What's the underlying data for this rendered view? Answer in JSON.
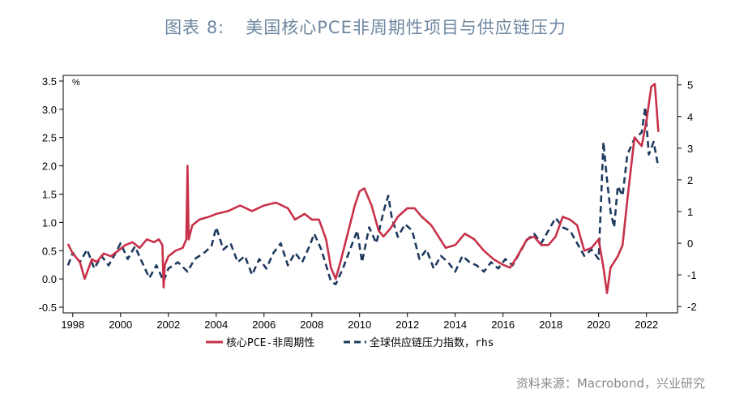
{
  "title": {
    "figure": "图表 8:",
    "text": "美国核心PCE非周期性项目与供应链压力"
  },
  "source": "资料来源：Macrobond，兴业研究",
  "colors": {
    "s1": "#c8314a",
    "s2": "#1f3a5f"
  },
  "chart_data": {
    "type": "line",
    "left_unit": "%",
    "xlim": [
      1997.6,
      2023.3
    ],
    "ylim_left": [
      -0.6,
      3.6
    ],
    "ylim_right": [
      -2.2,
      5.3
    ],
    "x_ticks": [
      1998,
      2000,
      2002,
      2004,
      2006,
      2008,
      2010,
      2012,
      2014,
      2016,
      2018,
      2020,
      2022
    ],
    "x_tick_labels": [
      "1998",
      "2000",
      "2002",
      "2004",
      "2006",
      "2008",
      "2010",
      "2012",
      "2014",
      "2016",
      "2018",
      "2020",
      "2022"
    ],
    "y_left_ticks": [
      -0.5,
      0.0,
      0.5,
      1.0,
      1.5,
      2.0,
      2.5,
      3.0,
      3.5
    ],
    "y_left_tick_labels": [
      "-0.5",
      "0.0",
      "0.5",
      "1.0",
      "1.5",
      "2.0",
      "2.5",
      "3.0",
      "3.5"
    ],
    "y_right_ticks": [
      -2,
      -1,
      0,
      1,
      2,
      3,
      4,
      5
    ],
    "y_right_tick_labels": [
      "-2",
      "-1",
      "0",
      "1",
      "2",
      "3",
      "4",
      "5"
    ],
    "series": [
      {
        "name": "核心PCE-非周期性",
        "axis": "left",
        "style": "solid",
        "x": [
          1997.8,
          1998.0,
          1998.3,
          1998.5,
          1998.8,
          1999.0,
          1999.3,
          1999.6,
          1999.9,
          2000.2,
          2000.5,
          2000.8,
          2001.1,
          2001.4,
          2001.6,
          2001.75,
          2001.8,
          2001.85,
          2002.0,
          2002.3,
          2002.6,
          2002.75,
          2002.8,
          2002.85,
          2003.0,
          2003.3,
          2003.7,
          2004.0,
          2004.5,
          2005.0,
          2005.5,
          2006.0,
          2006.5,
          2007.0,
          2007.3,
          2007.7,
          2008.0,
          2008.3,
          2008.6,
          2008.8,
          2009.0,
          2009.2,
          2009.5,
          2009.8,
          2010.0,
          2010.2,
          2010.5,
          2010.8,
          2011.0,
          2011.3,
          2011.6,
          2012.0,
          2012.3,
          2012.6,
          2013.0,
          2013.3,
          2013.6,
          2014.0,
          2014.4,
          2014.8,
          2015.2,
          2015.6,
          2016.0,
          2016.3,
          2016.6,
          2017.0,
          2017.3,
          2017.6,
          2017.9,
          2018.2,
          2018.5,
          2018.8,
          2019.1,
          2019.4,
          2019.7,
          2020.0,
          2020.2,
          2020.35,
          2020.5,
          2020.8,
          2021.0,
          2021.2,
          2021.5,
          2021.8,
          2022.0,
          2022.2,
          2022.35,
          2022.5
        ],
        "values": [
          0.62,
          0.45,
          0.3,
          0.0,
          0.35,
          0.3,
          0.45,
          0.4,
          0.5,
          0.6,
          0.65,
          0.55,
          0.7,
          0.65,
          0.7,
          0.6,
          -0.15,
          0.25,
          0.4,
          0.5,
          0.55,
          0.7,
          2.0,
          0.7,
          0.95,
          1.05,
          1.1,
          1.15,
          1.2,
          1.3,
          1.2,
          1.3,
          1.35,
          1.25,
          1.05,
          1.15,
          1.05,
          1.05,
          0.7,
          0.2,
          0.0,
          0.3,
          0.8,
          1.3,
          1.55,
          1.6,
          1.3,
          0.85,
          0.75,
          0.9,
          1.1,
          1.25,
          1.25,
          1.1,
          0.95,
          0.75,
          0.55,
          0.6,
          0.8,
          0.7,
          0.5,
          0.35,
          0.25,
          0.2,
          0.4,
          0.7,
          0.75,
          0.6,
          0.6,
          0.75,
          1.1,
          1.05,
          0.95,
          0.5,
          0.55,
          0.7,
          0.2,
          -0.25,
          0.2,
          0.4,
          0.6,
          1.4,
          2.5,
          2.35,
          2.8,
          3.4,
          3.45,
          2.6
        ]
      },
      {
        "name": "全球供应链压力指数，rhs",
        "axis": "right",
        "style": "dashed",
        "x": [
          1997.8,
          1998.0,
          1998.3,
          1998.6,
          1998.9,
          1999.2,
          1999.5,
          1999.8,
          2000.0,
          2000.3,
          2000.6,
          2000.9,
          2001.2,
          2001.5,
          2001.8,
          2002.0,
          2002.4,
          2002.8,
          2003.1,
          2003.5,
          2003.8,
          2004.0,
          2004.3,
          2004.6,
          2004.9,
          2005.2,
          2005.5,
          2005.8,
          2006.1,
          2006.4,
          2006.7,
          2007.0,
          2007.3,
          2007.6,
          2007.9,
          2008.1,
          2008.4,
          2008.6,
          2008.8,
          2009.0,
          2009.3,
          2009.6,
          2009.9,
          2010.1,
          2010.4,
          2010.7,
          2011.0,
          2011.2,
          2011.35,
          2011.6,
          2011.9,
          2012.2,
          2012.5,
          2012.8,
          2013.1,
          2013.4,
          2013.7,
          2014.0,
          2014.3,
          2014.6,
          2014.9,
          2015.2,
          2015.5,
          2015.8,
          2016.1,
          2016.4,
          2016.7,
          2017.0,
          2017.3,
          2017.6,
          2017.9,
          2018.2,
          2018.5,
          2018.8,
          2019.1,
          2019.4,
          2019.7,
          2020.0,
          2020.2,
          2020.35,
          2020.5,
          2020.65,
          2020.8,
          2021.0,
          2021.2,
          2021.5,
          2021.8,
          2021.95,
          2022.1,
          2022.3,
          2022.5
        ],
        "values": [
          -0.7,
          -0.3,
          -0.6,
          -0.2,
          -0.8,
          -0.4,
          -0.7,
          -0.3,
          0.0,
          -0.5,
          -0.1,
          -0.6,
          -1.1,
          -0.7,
          -1.2,
          -0.8,
          -0.6,
          -0.9,
          -0.5,
          -0.3,
          -0.1,
          0.5,
          -0.2,
          0.0,
          -0.6,
          -0.4,
          -1.0,
          -0.5,
          -0.8,
          -0.3,
          0.0,
          -0.7,
          -0.3,
          -0.6,
          -0.1,
          0.3,
          -0.2,
          -0.7,
          -1.2,
          -1.3,
          -0.8,
          -0.2,
          0.4,
          -0.6,
          0.5,
          0.0,
          1.0,
          1.5,
          0.8,
          0.2,
          0.6,
          0.4,
          -0.5,
          -0.2,
          -0.8,
          -0.4,
          -0.6,
          -0.9,
          -0.4,
          -0.6,
          -0.7,
          -0.9,
          -0.6,
          -0.8,
          -0.5,
          -0.7,
          -0.3,
          0.1,
          0.3,
          0.0,
          0.4,
          0.8,
          0.5,
          0.4,
          0.0,
          -0.4,
          -0.2,
          -0.5,
          3.2,
          2.0,
          1.0,
          0.5,
          1.8,
          1.5,
          2.8,
          3.3,
          3.5,
          4.3,
          2.8,
          3.2,
          2.4
        ]
      }
    ]
  }
}
